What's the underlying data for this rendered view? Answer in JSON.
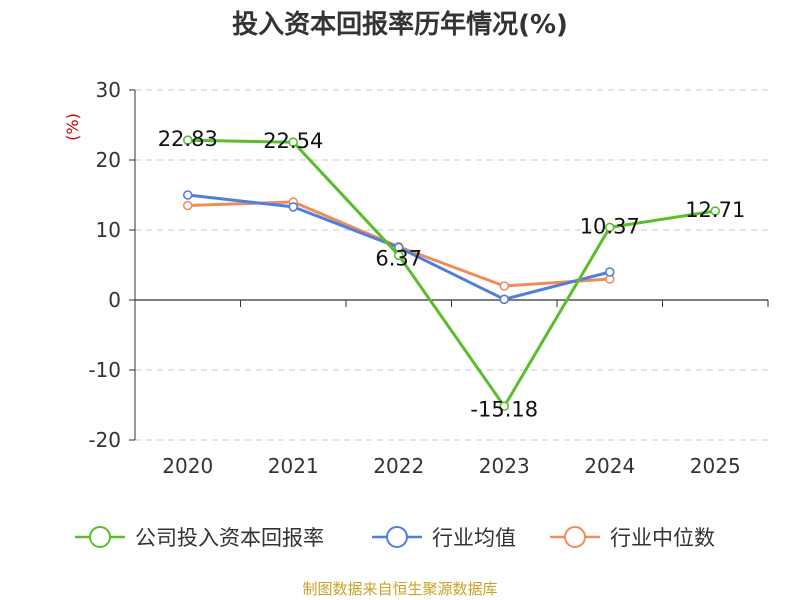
{
  "chart_data": {
    "type": "line",
    "title": "投入资本回报率历年情况(%)",
    "ylabel": "(%)",
    "categories": [
      "2020",
      "2021",
      "2022",
      "2023",
      "2024",
      "2025"
    ],
    "ylim": [
      -20,
      30
    ],
    "yticks": [
      30,
      20,
      10,
      0,
      -10,
      -20
    ],
    "ytick_labels": [
      "30",
      "20",
      "10",
      "0",
      "-10",
      "-20"
    ],
    "grid": true,
    "legend_position": "bottom",
    "series": [
      {
        "name": "公司投入资本回报率",
        "color": "#5bbd2b",
        "values": [
          22.83,
          22.54,
          6.37,
          -15.18,
          10.37,
          12.71
        ],
        "labels": [
          "22.83",
          "22.54",
          "6.37",
          "-15.18",
          "10.37",
          "12.71"
        ]
      },
      {
        "name": "行业均值",
        "color": "#4f7fdc",
        "values": [
          15.0,
          13.3,
          7.5,
          0.1,
          4.0,
          null
        ]
      },
      {
        "name": "行业中位数",
        "color": "#f28b5b",
        "values": [
          13.5,
          14.0,
          7.6,
          2.0,
          3.0,
          null
        ]
      }
    ]
  },
  "colors": {
    "title": "#333333",
    "unit_label": "#cc0000",
    "source": "#c9a227"
  },
  "source_text": "制图数据来自恒生聚源数据库"
}
